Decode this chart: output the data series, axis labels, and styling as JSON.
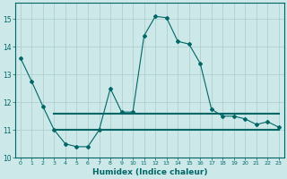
{
  "bg_color": "#cce8e8",
  "grid_color": "#aacccc",
  "line_color": "#006666",
  "xlabel": "Humidex (Indice chaleur)",
  "xlim": [
    -0.5,
    23.5
  ],
  "ylim": [
    10,
    15.6
  ],
  "yticks": [
    10,
    11,
    12,
    13,
    14,
    15
  ],
  "xticks": [
    0,
    1,
    2,
    3,
    4,
    5,
    6,
    7,
    8,
    9,
    10,
    11,
    12,
    13,
    14,
    15,
    16,
    17,
    18,
    19,
    20,
    21,
    22,
    23
  ],
  "series1_x": [
    0,
    1,
    2,
    3,
    4,
    5,
    6,
    7,
    8,
    9,
    10,
    11,
    12,
    13,
    14,
    15,
    16,
    17,
    18,
    19,
    20,
    21,
    22,
    23
  ],
  "series1_y": [
    13.6,
    12.75,
    11.85,
    11.0,
    10.5,
    10.4,
    10.4,
    11.0,
    12.5,
    11.65,
    11.65,
    14.4,
    15.1,
    15.05,
    14.2,
    14.1,
    13.4,
    11.75,
    11.5,
    11.5,
    11.4,
    11.2,
    11.3,
    11.1
  ],
  "series2_x": [
    3,
    23
  ],
  "series2_y": [
    11.6,
    11.6
  ],
  "series3_x": [
    3,
    23
  ],
  "series3_y": [
    11.0,
    11.0
  ]
}
